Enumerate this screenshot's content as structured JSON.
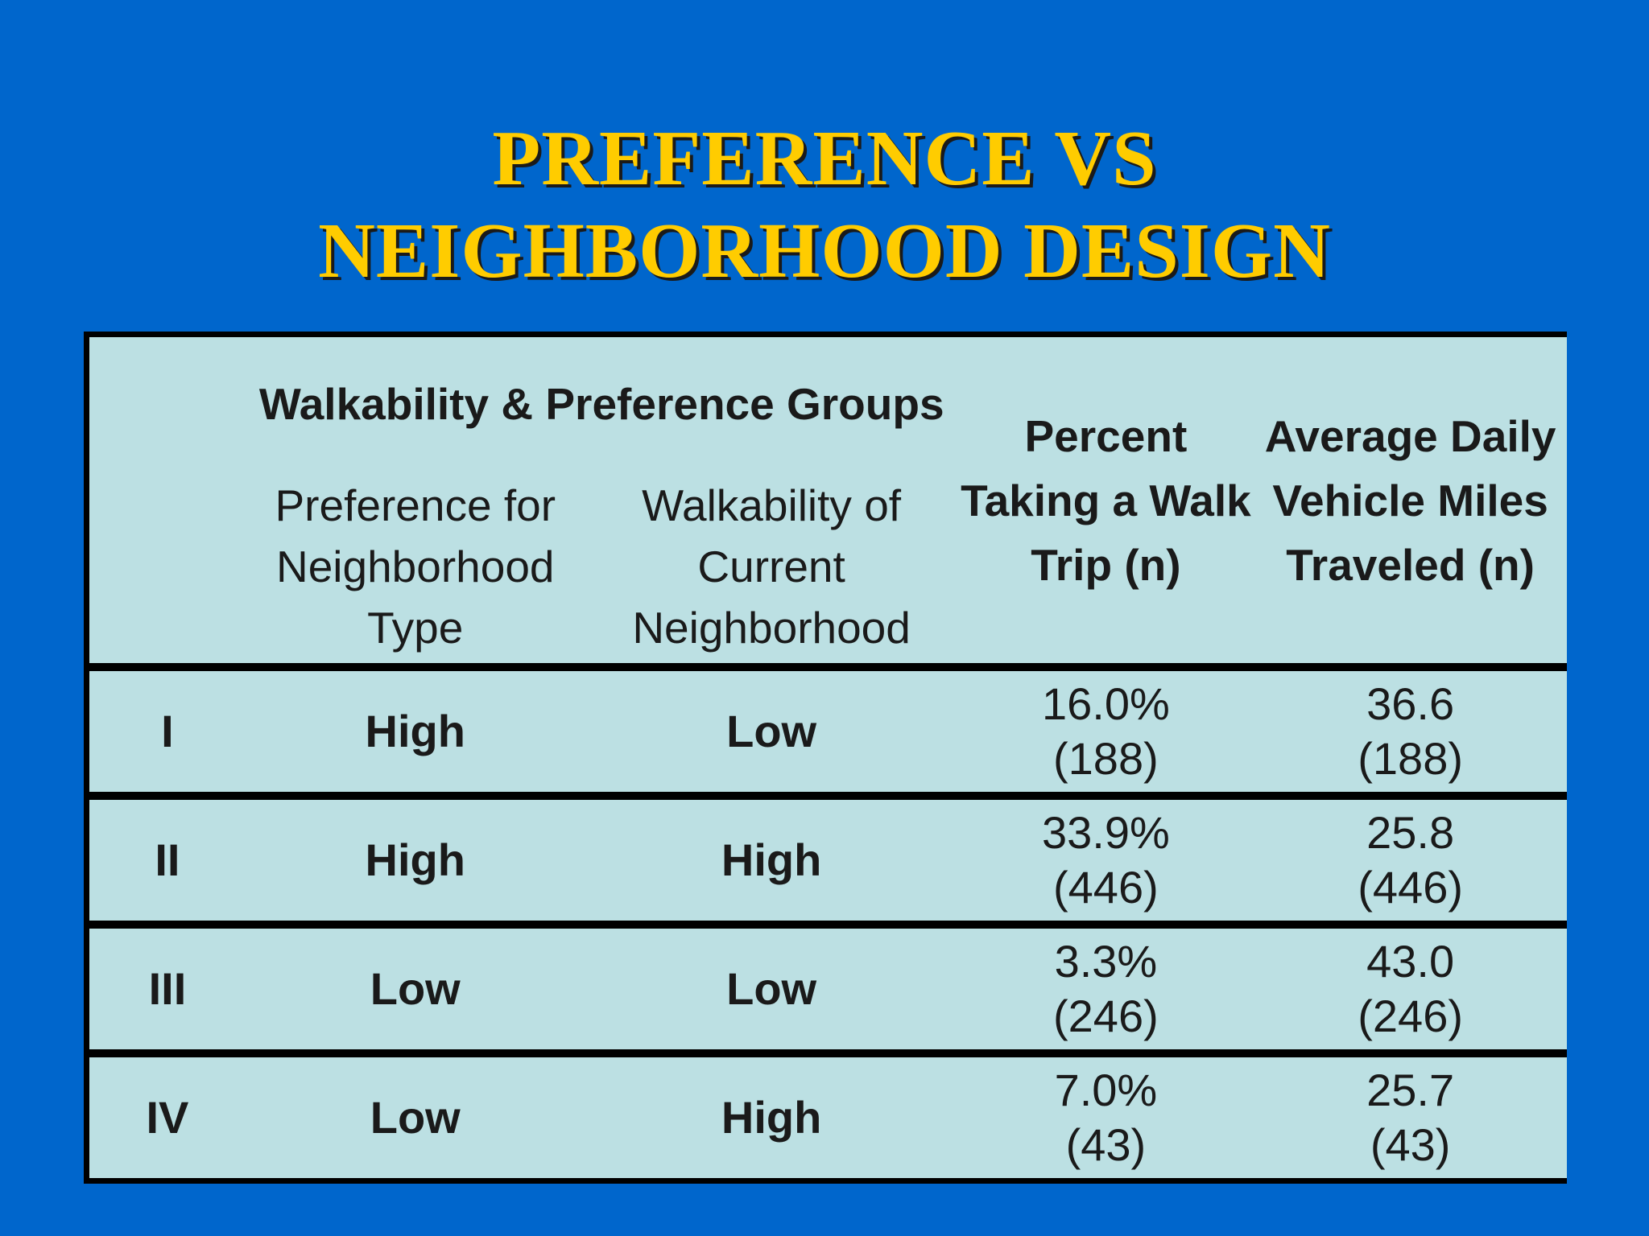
{
  "title": {
    "line1": "PREFERENCE VS",
    "line2": "NEIGHBORHOOD DESIGN"
  },
  "table": {
    "group_header": "Walkability & Preference Groups",
    "sub_headers": {
      "preference": "Preference for Neighborhood Type",
      "walkability": "Walkability of Current Neighborhood"
    },
    "headers": {
      "walk_trip": "Percent Taking a Walk Trip (n)",
      "vmt": "Average Daily Vehicle Miles Traveled (n)"
    },
    "rows": [
      {
        "group": "I",
        "preference": "High",
        "walkability": "Low",
        "walk_pct": "16.0%",
        "walk_n": "(188)",
        "vmt": "36.6",
        "vmt_n": "(188)"
      },
      {
        "group": "II",
        "preference": "High",
        "walkability": "High",
        "walk_pct": "33.9%",
        "walk_n": "(446)",
        "vmt": "25.8",
        "vmt_n": "(446)"
      },
      {
        "group": "III",
        "preference": "Low",
        "walkability": "Low",
        "walk_pct": "3.3%",
        "walk_n": "(246)",
        "vmt": "43.0",
        "vmt_n": "(246)"
      },
      {
        "group": "IV",
        "preference": "Low",
        "walkability": "High",
        "walk_pct": "7.0%",
        "walk_n": "(43)",
        "vmt": "25.7",
        "vmt_n": "(43)"
      }
    ]
  },
  "colors": {
    "background": "#0066cc",
    "title": "#ffcc00",
    "table_fill": "#bce0e3",
    "rules": "#000000"
  }
}
